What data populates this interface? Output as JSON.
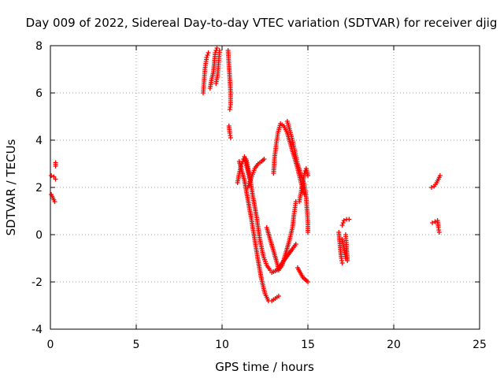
{
  "chart_data": {
    "type": "scatter",
    "title": "Day 009 of 2022, Sidereal Day-to-day VTEC variation (SDTVAR) for receiver djig",
    "xlabel": "GPS time / hours",
    "ylabel": "SDTVAR / TECUs",
    "xlim": [
      0,
      25
    ],
    "ylim": [
      -4,
      8
    ],
    "xticks": [
      0,
      5,
      10,
      15,
      20,
      25
    ],
    "yticks": [
      -4,
      -2,
      0,
      2,
      4,
      6,
      8
    ],
    "grid": true,
    "marker": "+",
    "color": "#ff0000",
    "segments": [
      {
        "name": "early-a",
        "points": [
          [
            0.05,
            1.7
          ],
          [
            0.15,
            1.55
          ],
          [
            0.25,
            1.4
          ]
        ]
      },
      {
        "name": "early-b",
        "points": [
          [
            0.05,
            2.5
          ],
          [
            0.2,
            2.45
          ],
          [
            0.3,
            2.35
          ]
        ]
      },
      {
        "name": "early-c",
        "points": [
          [
            0.3,
            3.05
          ],
          [
            0.3,
            2.9
          ]
        ]
      },
      {
        "name": "arc-9h-left",
        "points": [
          [
            8.9,
            6.0
          ],
          [
            8.95,
            6.5
          ],
          [
            9.0,
            7.0
          ],
          [
            9.1,
            7.5
          ],
          [
            9.2,
            7.7
          ]
        ]
      },
      {
        "name": "arc-9h-mid",
        "points": [
          [
            9.3,
            6.2
          ],
          [
            9.4,
            6.6
          ],
          [
            9.5,
            6.9
          ],
          [
            9.55,
            7.3
          ],
          [
            9.6,
            7.7
          ],
          [
            9.7,
            7.9
          ]
        ]
      },
      {
        "name": "arc-9h-right",
        "points": [
          [
            9.65,
            6.4
          ],
          [
            9.75,
            6.8
          ],
          [
            9.8,
            7.3
          ],
          [
            9.85,
            7.8
          ]
        ]
      },
      {
        "name": "arc-10h",
        "points": [
          [
            10.35,
            7.8
          ],
          [
            10.4,
            7.2
          ],
          [
            10.45,
            6.6
          ],
          [
            10.5,
            6.0
          ],
          [
            10.5,
            5.5
          ],
          [
            10.45,
            5.3
          ]
        ]
      },
      {
        "name": "drop-10h",
        "points": [
          [
            10.4,
            4.6
          ],
          [
            10.45,
            4.3
          ],
          [
            10.5,
            4.1
          ]
        ]
      },
      {
        "name": "blob-11h",
        "points": [
          [
            10.9,
            2.2
          ],
          [
            11.0,
            2.6
          ],
          [
            11.1,
            2.9
          ],
          [
            11.2,
            3.1
          ],
          [
            11.3,
            3.3
          ],
          [
            11.4,
            3.0
          ],
          [
            11.5,
            2.7
          ],
          [
            11.6,
            2.4
          ]
        ]
      },
      {
        "name": "long-drop",
        "points": [
          [
            11.0,
            3.1
          ],
          [
            11.3,
            2.3
          ],
          [
            11.5,
            1.5
          ],
          [
            11.7,
            0.7
          ],
          [
            11.9,
            -0.2
          ],
          [
            12.1,
            -1.1
          ],
          [
            12.3,
            -1.9
          ],
          [
            12.5,
            -2.5
          ],
          [
            12.7,
            -2.8
          ],
          [
            12.9,
            -2.8
          ],
          [
            13.1,
            -2.7
          ],
          [
            13.3,
            -2.6
          ]
        ]
      },
      {
        "name": "parallel-drop",
        "points": [
          [
            11.4,
            3.2
          ],
          [
            11.6,
            2.5
          ],
          [
            11.8,
            1.6
          ],
          [
            12.0,
            0.8
          ],
          [
            12.2,
            -0.2
          ],
          [
            12.4,
            -0.9
          ],
          [
            12.6,
            -1.3
          ],
          [
            12.8,
            -1.5
          ]
        ]
      },
      {
        "name": "rise-to-12h",
        "points": [
          [
            11.5,
            2.0
          ],
          [
            11.7,
            2.4
          ],
          [
            11.9,
            2.8
          ],
          [
            12.1,
            3.0
          ],
          [
            12.3,
            3.1
          ],
          [
            12.45,
            3.2
          ]
        ]
      },
      {
        "name": "mid-13h",
        "points": [
          [
            12.6,
            0.3
          ],
          [
            12.8,
            -0.2
          ],
          [
            13.0,
            -0.7
          ],
          [
            13.2,
            -1.2
          ],
          [
            13.3,
            -1.5
          ],
          [
            13.5,
            -1.3
          ],
          [
            13.7,
            -0.8
          ],
          [
            13.9,
            -0.3
          ],
          [
            14.1,
            0.3
          ],
          [
            14.2,
            0.9
          ],
          [
            14.3,
            1.4
          ]
        ]
      },
      {
        "name": "low-13h",
        "points": [
          [
            12.9,
            -1.6
          ],
          [
            13.2,
            -1.5
          ],
          [
            13.5,
            -1.2
          ],
          [
            13.8,
            -0.9
          ],
          [
            14.1,
            -0.6
          ],
          [
            14.3,
            -0.4
          ]
        ]
      },
      {
        "name": "arc-13-14h",
        "points": [
          [
            13.0,
            2.6
          ],
          [
            13.05,
            3.2
          ],
          [
            13.15,
            3.8
          ],
          [
            13.25,
            4.3
          ],
          [
            13.4,
            4.7
          ],
          [
            13.6,
            4.6
          ],
          [
            13.8,
            4.3
          ],
          [
            14.0,
            3.8
          ],
          [
            14.2,
            3.3
          ],
          [
            14.4,
            2.8
          ],
          [
            14.6,
            2.2
          ],
          [
            14.8,
            1.7
          ]
        ]
      },
      {
        "name": "arc-14h",
        "points": [
          [
            13.8,
            4.8
          ],
          [
            13.95,
            4.4
          ],
          [
            14.1,
            4.0
          ],
          [
            14.25,
            3.5
          ],
          [
            14.4,
            3.0
          ],
          [
            14.6,
            2.5
          ],
          [
            14.8,
            2.1
          ],
          [
            14.9,
            1.6
          ],
          [
            14.95,
            1.0
          ],
          [
            15.0,
            0.5
          ],
          [
            15.0,
            0.1
          ]
        ]
      },
      {
        "name": "right-arc-14h",
        "points": [
          [
            14.5,
            1.4
          ],
          [
            14.6,
            1.8
          ],
          [
            14.7,
            2.2
          ],
          [
            14.8,
            2.6
          ],
          [
            14.9,
            2.8
          ],
          [
            15.0,
            2.5
          ]
        ]
      },
      {
        "name": "tail-15h",
        "points": [
          [
            14.4,
            -1.4
          ],
          [
            14.55,
            -1.6
          ],
          [
            14.7,
            -1.8
          ],
          [
            14.85,
            -1.9
          ],
          [
            15.0,
            -2.0
          ]
        ]
      },
      {
        "name": "cluster-17h-a",
        "points": [
          [
            16.8,
            0.1
          ],
          [
            16.85,
            -0.3
          ],
          [
            16.9,
            -0.7
          ],
          [
            16.95,
            -1.0
          ],
          [
            17.0,
            -1.2
          ]
        ]
      },
      {
        "name": "cluster-17h-b",
        "points": [
          [
            17.0,
            -0.2
          ],
          [
            17.1,
            -0.6
          ],
          [
            17.2,
            -1.0
          ],
          [
            17.3,
            -1.1
          ],
          [
            17.25,
            -0.5
          ],
          [
            17.2,
            0.0
          ]
        ]
      },
      {
        "name": "cluster-17h-c",
        "points": [
          [
            17.0,
            0.4
          ],
          [
            17.1,
            0.6
          ],
          [
            17.25,
            0.65
          ],
          [
            17.4,
            0.65
          ]
        ]
      },
      {
        "name": "late-a",
        "points": [
          [
            22.2,
            2.0
          ],
          [
            22.35,
            2.05
          ],
          [
            22.5,
            2.2
          ],
          [
            22.6,
            2.35
          ],
          [
            22.7,
            2.5
          ]
        ]
      },
      {
        "name": "late-b",
        "points": [
          [
            22.25,
            0.5
          ],
          [
            22.4,
            0.55
          ],
          [
            22.55,
            0.6
          ],
          [
            22.6,
            0.3
          ],
          [
            22.65,
            0.1
          ]
        ]
      }
    ]
  }
}
